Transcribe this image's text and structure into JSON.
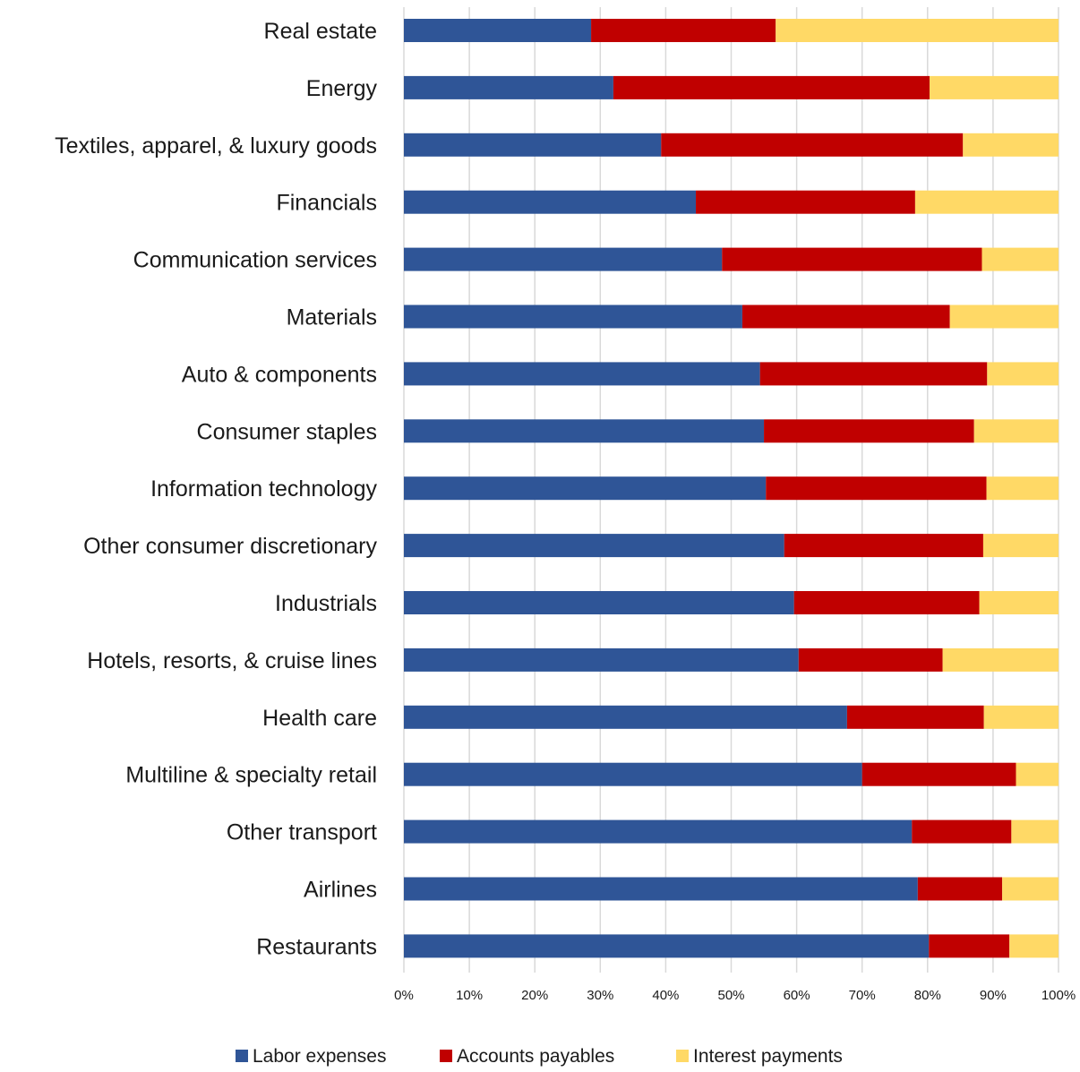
{
  "chart_data": {
    "type": "bar",
    "orientation": "horizontal",
    "stacked": "percent",
    "title": "",
    "xlabel": "",
    "ylabel": "",
    "xlim": [
      0,
      100
    ],
    "x_ticks": [
      "0%",
      "10%",
      "20%",
      "30%",
      "40%",
      "50%",
      "60%",
      "70%",
      "80%",
      "90%",
      "100%"
    ],
    "grid": "vertical",
    "legend_position": "bottom",
    "categories": [
      "Real estate",
      "Energy",
      "Textiles, apparel, & luxury goods",
      "Financials",
      "Communication services",
      "Materials",
      "Auto & components",
      "Consumer staples",
      "Information technology",
      "Other consumer discretionary",
      "Industrials",
      "Hotels, resorts, & cruise lines",
      "Health care",
      "Multiline & specialty retail",
      "Other transport",
      "Airlines",
      "Restaurants"
    ],
    "series": [
      {
        "name": "Labor expenses",
        "color": "#2f5597",
        "values": [
          28.6,
          32.0,
          39.3,
          44.6,
          48.6,
          51.7,
          54.4,
          55.0,
          55.3,
          58.1,
          59.6,
          60.3,
          67.7,
          70.0,
          77.6,
          78.5,
          80.2
        ]
      },
      {
        "name": "Accounts payables",
        "color": "#c00000",
        "values": [
          28.2,
          48.3,
          46.1,
          33.5,
          39.7,
          31.7,
          34.7,
          32.1,
          33.7,
          30.4,
          28.3,
          22.0,
          20.9,
          23.5,
          15.2,
          12.9,
          12.3
        ]
      },
      {
        "name": "Interest payments",
        "color": "#ffd966",
        "values": [
          43.2,
          19.7,
          14.6,
          21.9,
          11.7,
          16.6,
          10.9,
          12.9,
          11.0,
          11.5,
          12.1,
          17.7,
          11.4,
          6.5,
          7.2,
          8.6,
          7.5
        ]
      }
    ]
  }
}
